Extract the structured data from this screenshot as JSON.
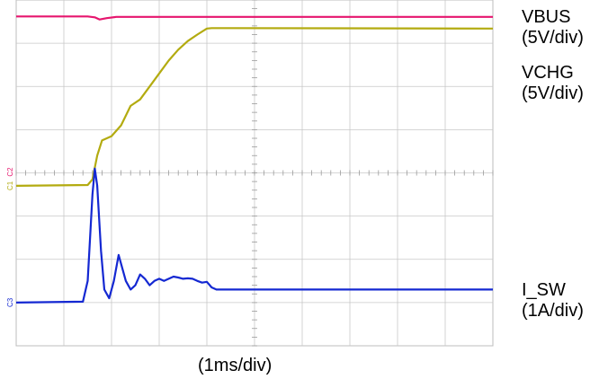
{
  "chart_data": {
    "type": "line",
    "title": "",
    "xlabel": "(1ms/div)",
    "ylabel": "",
    "grid": true,
    "divisions": {
      "x": 10,
      "y": 8
    },
    "x_range_div": [
      0,
      10
    ],
    "y_range_div": [
      0,
      8
    ],
    "channel_markers": [
      "C2",
      "C1",
      "C3"
    ],
    "series": [
      {
        "name": "VBUS",
        "name_line2": "(5V/div)",
        "color": "#e6166e",
        "x": [
          0,
          1.5,
          1.65,
          1.75,
          1.9,
          2.1,
          10
        ],
        "y": [
          7.62,
          7.62,
          7.6,
          7.55,
          7.58,
          7.61,
          7.61
        ]
      },
      {
        "name": "VCHG",
        "name_line2": "(5V/div)",
        "color": "#b3ab10",
        "x": [
          0,
          1.5,
          1.6,
          1.7,
          1.8,
          2.0,
          2.2,
          2.4,
          2.6,
          2.8,
          3.0,
          3.2,
          3.4,
          3.6,
          3.8,
          4.0,
          4.1,
          10
        ],
        "y": [
          3.7,
          3.72,
          3.85,
          4.4,
          4.75,
          4.85,
          5.1,
          5.55,
          5.7,
          6.0,
          6.3,
          6.6,
          6.85,
          7.05,
          7.2,
          7.34,
          7.35,
          7.34
        ]
      },
      {
        "name": "I_SW",
        "name_line2": "(1A/div)",
        "color": "#1428d2",
        "x": [
          0,
          1.4,
          1.5,
          1.6,
          1.65,
          1.7,
          1.78,
          1.85,
          1.95,
          2.05,
          2.15,
          2.3,
          2.4,
          2.5,
          2.6,
          2.7,
          2.8,
          2.9,
          3.0,
          3.1,
          3.2,
          3.3,
          3.4,
          3.5,
          3.6,
          3.7,
          3.8,
          3.9,
          4.0,
          4.1,
          4.2,
          10
        ],
        "y": [
          1.0,
          1.02,
          1.5,
          3.5,
          4.1,
          3.7,
          2.2,
          1.3,
          1.1,
          1.5,
          2.1,
          1.5,
          1.3,
          1.4,
          1.65,
          1.55,
          1.4,
          1.5,
          1.55,
          1.5,
          1.55,
          1.6,
          1.58,
          1.55,
          1.56,
          1.55,
          1.5,
          1.46,
          1.48,
          1.35,
          1.3,
          1.3
        ]
      }
    ]
  }
}
